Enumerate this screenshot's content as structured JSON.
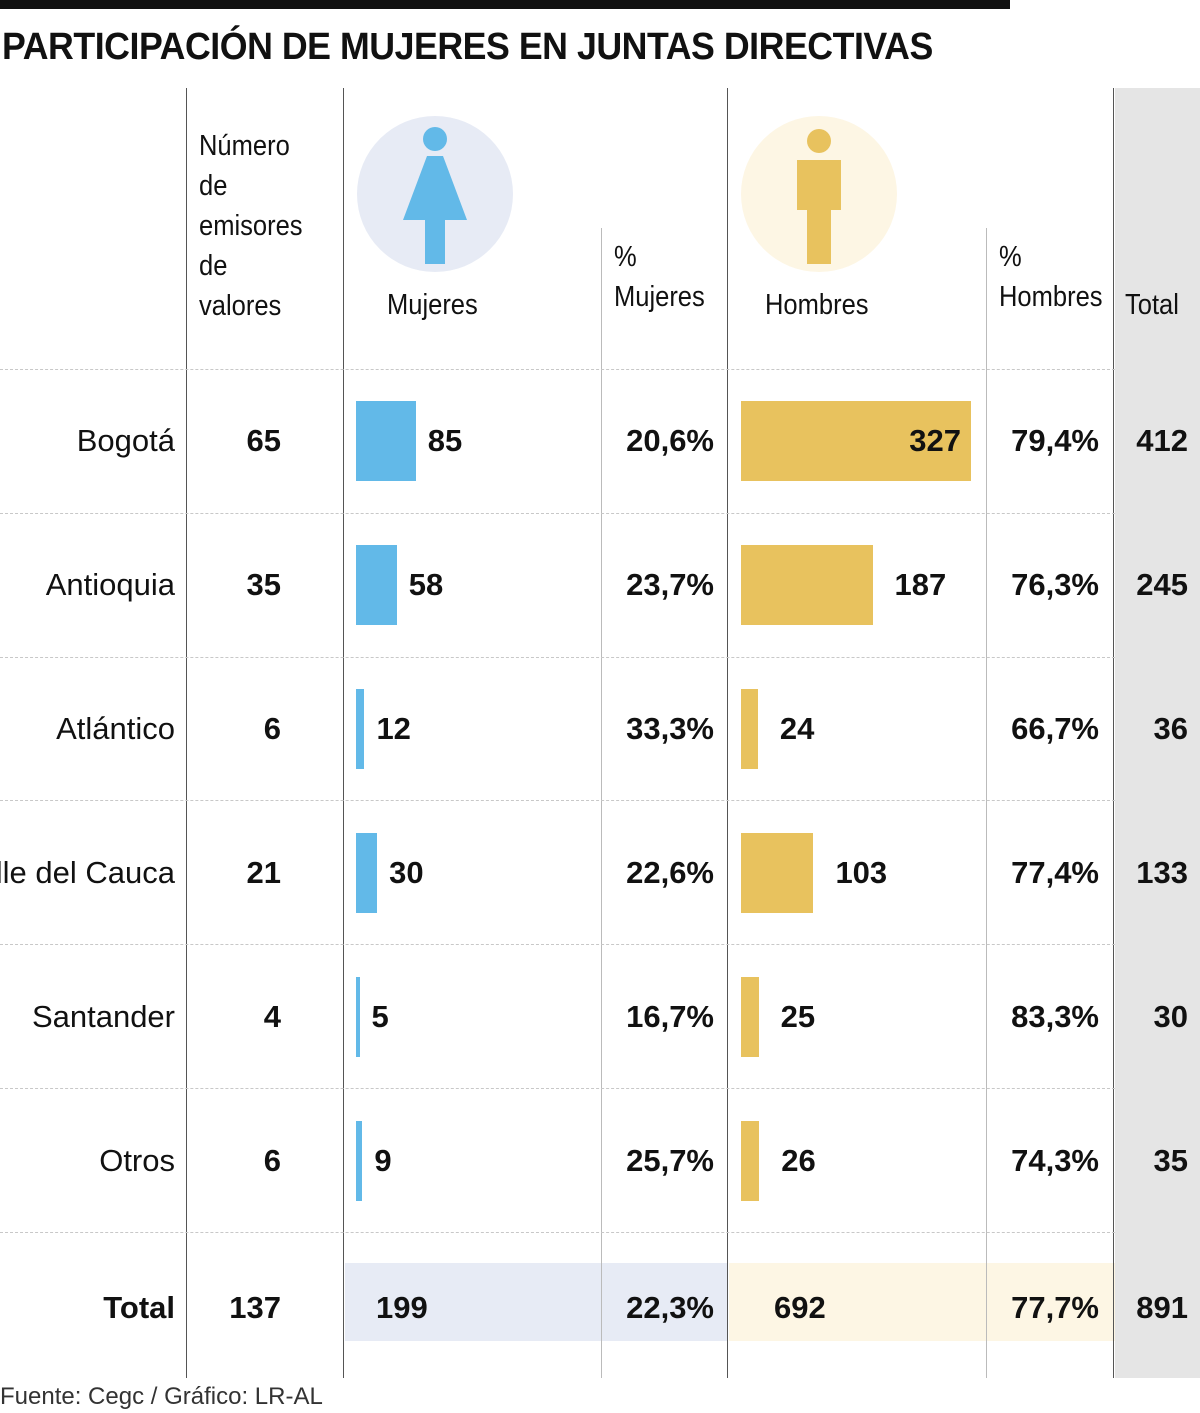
{
  "title": "PARTICIPACIÓN DE MUJERES EN JUNTAS DIRECTIVAS",
  "headers": {
    "emisores": [
      "Número",
      "de",
      "emisores",
      "de",
      "valores"
    ],
    "mujeres": "Mujeres",
    "pct_mujeres": [
      "%",
      "Mujeres"
    ],
    "hombres": "Hombres",
    "pct_hombres": [
      "%",
      "Hombres"
    ],
    "total": "Total"
  },
  "icons": {
    "woman": "woman-icon",
    "man": "man-icon",
    "woman_color": "#62b9e8",
    "man_color": "#e8c25e"
  },
  "chart_data": {
    "type": "table",
    "rows": [
      {
        "region": "Bogotá",
        "emisores": "65",
        "mujeres": 85,
        "pct_mujeres": "20,6%",
        "hombres": 327,
        "pct_hombres": "79,4%",
        "total": "412"
      },
      {
        "region": "Antioquia",
        "emisores": "35",
        "mujeres": 58,
        "pct_mujeres": "23,7%",
        "hombres": 187,
        "pct_hombres": "76,3%",
        "total": "245"
      },
      {
        "region": "Atlántico",
        "emisores": "6",
        "mujeres": 12,
        "pct_mujeres": "33,3%",
        "hombres": 24,
        "pct_hombres": "66,7%",
        "total": "36"
      },
      {
        "region": "Valle del Cauca",
        "emisores": "21",
        "mujeres": 30,
        "pct_mujeres": "22,6%",
        "hombres": 103,
        "pct_hombres": "77,4%",
        "total": "133"
      },
      {
        "region": "Santander",
        "emisores": "4",
        "mujeres": 5,
        "pct_mujeres": "16,7%",
        "hombres": 25,
        "pct_hombres": "83,3%",
        "total": "30"
      },
      {
        "region": "Otros",
        "emisores": "6",
        "mujeres": 9,
        "pct_mujeres": "25,7%",
        "hombres": 26,
        "pct_hombres": "74,3%",
        "total": "35"
      }
    ],
    "total_row": {
      "label": "Total",
      "emisores": "137",
      "mujeres": "199",
      "pct_mujeres": "22,3%",
      "hombres": "692",
      "pct_hombres": "77,7%",
      "total": "891"
    }
  },
  "source": "Fuente: Cegc / Gráfico: LR-AL"
}
